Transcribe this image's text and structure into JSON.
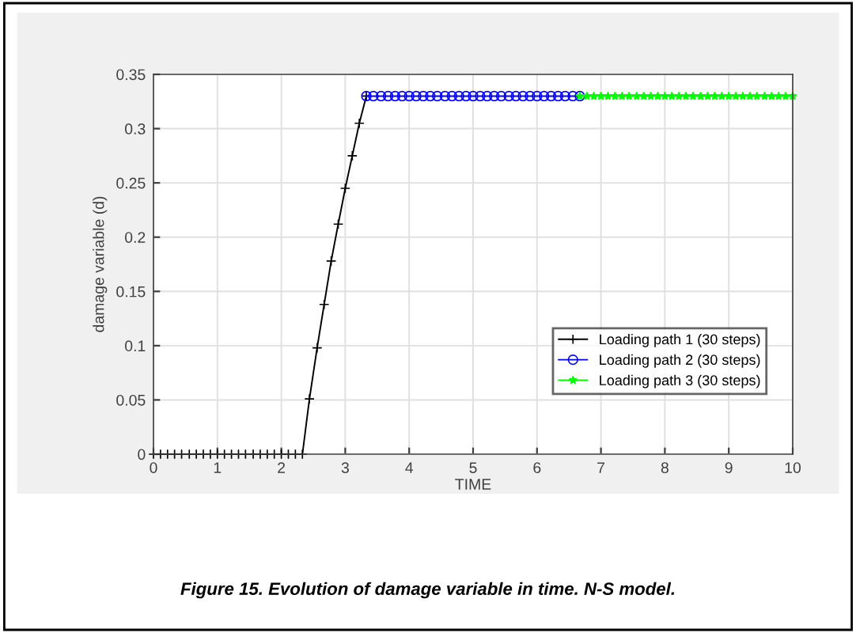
{
  "chart_data": {
    "type": "line",
    "xlabel": "TIME",
    "ylabel": "damage variable (d)",
    "xlim": [
      0,
      10
    ],
    "ylim": [
      0,
      0.35
    ],
    "xticks": [
      0,
      1,
      2,
      3,
      4,
      5,
      6,
      7,
      8,
      9,
      10
    ],
    "yticks": [
      0,
      0.05,
      0.1,
      0.15,
      0.2,
      0.25,
      0.3,
      0.35
    ],
    "grid": true,
    "legend": "bottom right",
    "line_style": "solid",
    "series": [
      {
        "name": "Loading path 1 (30 steps)",
        "color": "#000000",
        "marker": "cross",
        "x": [
          0,
          0.11,
          0.22,
          0.33,
          0.44,
          0.56,
          0.67,
          0.78,
          0.89,
          1,
          1.11,
          1.22,
          1.33,
          1.44,
          1.56,
          1.67,
          1.78,
          1.89,
          2,
          2.11,
          2.22,
          2.33,
          2.44,
          2.56,
          2.67,
          2.78,
          2.89,
          3,
          3.11,
          3.22,
          3.33
        ],
        "values": [
          0,
          0,
          0,
          0,
          0,
          0,
          0,
          0,
          0,
          0,
          0,
          0,
          0,
          0,
          0,
          0,
          0,
          0,
          0,
          0,
          0,
          0,
          0.051,
          0.098,
          0.138,
          0.178,
          0.212,
          0.245,
          0.275,
          0.305,
          0.33
        ]
      },
      {
        "name": "Loading path 2 (30 steps)",
        "color": "#0000ff",
        "marker": "circle",
        "x": [
          3.33,
          3.44,
          3.56,
          3.67,
          3.78,
          3.89,
          4,
          4.11,
          4.22,
          4.33,
          4.44,
          4.56,
          4.67,
          4.78,
          4.89,
          5,
          5.11,
          5.22,
          5.33,
          5.44,
          5.56,
          5.67,
          5.78,
          5.89,
          6,
          6.11,
          6.22,
          6.33,
          6.44,
          6.56,
          6.67
        ],
        "values": [
          0.33,
          0.33,
          0.33,
          0.33,
          0.33,
          0.33,
          0.33,
          0.33,
          0.33,
          0.33,
          0.33,
          0.33,
          0.33,
          0.33,
          0.33,
          0.33,
          0.33,
          0.33,
          0.33,
          0.33,
          0.33,
          0.33,
          0.33,
          0.33,
          0.33,
          0.33,
          0.33,
          0.33,
          0.33,
          0.33,
          0.33
        ]
      },
      {
        "name": "Loading path 3 (30 steps)",
        "color": "#00ff00",
        "marker": "star",
        "x": [
          6.67,
          6.78,
          6.89,
          7,
          7.11,
          7.22,
          7.33,
          7.44,
          7.56,
          7.67,
          7.78,
          7.89,
          8,
          8.11,
          8.22,
          8.33,
          8.44,
          8.56,
          8.67,
          8.78,
          8.89,
          9,
          9.11,
          9.22,
          9.33,
          9.44,
          9.56,
          9.67,
          9.78,
          9.89,
          10
        ],
        "values": [
          0.33,
          0.33,
          0.33,
          0.33,
          0.33,
          0.33,
          0.33,
          0.33,
          0.33,
          0.33,
          0.33,
          0.33,
          0.33,
          0.33,
          0.33,
          0.33,
          0.33,
          0.33,
          0.33,
          0.33,
          0.33,
          0.33,
          0.33,
          0.33,
          0.33,
          0.33,
          0.33,
          0.33,
          0.33,
          0.33,
          0.33
        ]
      }
    ],
    "annotations": [
      "Figure 15. Evolution of damage variable in time. N-S model."
    ]
  }
}
